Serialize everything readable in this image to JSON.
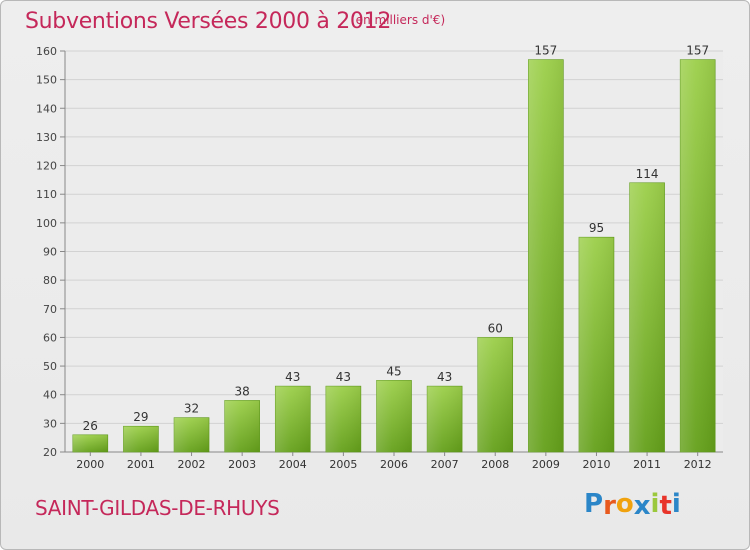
{
  "title": "Subventions Versées 2000 à 2012",
  "subtitle": "(en milliers d'€)",
  "place": "SAINT-GILDAS-DE-RHUYS",
  "logo": {
    "text": "Proxiti",
    "colors": [
      "#2b86c8",
      "#e85a1e",
      "#f0a20e",
      "#2b86c8",
      "#9bc83c",
      "#e8342a",
      "#2b86c8"
    ]
  },
  "colors": {
    "bar_top": "#9ccf4a",
    "bar_bottom": "#64a01a",
    "title": "#c5285a",
    "grid": "#d2d2d2"
  },
  "chart_data": {
    "type": "bar",
    "categories": [
      "2000",
      "2001",
      "2002",
      "2003",
      "2004",
      "2005",
      "2006",
      "2007",
      "2008",
      "2009",
      "2010",
      "2011",
      "2012"
    ],
    "values": [
      26,
      29,
      32,
      38,
      43,
      43,
      45,
      43,
      60,
      157,
      95,
      114,
      157
    ],
    "title": "Subventions Versées 2000 à 2012",
    "ylabel": "",
    "xlabel": "",
    "ylim": [
      20,
      160
    ],
    "yticks": [
      20,
      30,
      40,
      50,
      60,
      70,
      80,
      90,
      100,
      110,
      120,
      130,
      140,
      150,
      160
    ],
    "grid": true
  }
}
